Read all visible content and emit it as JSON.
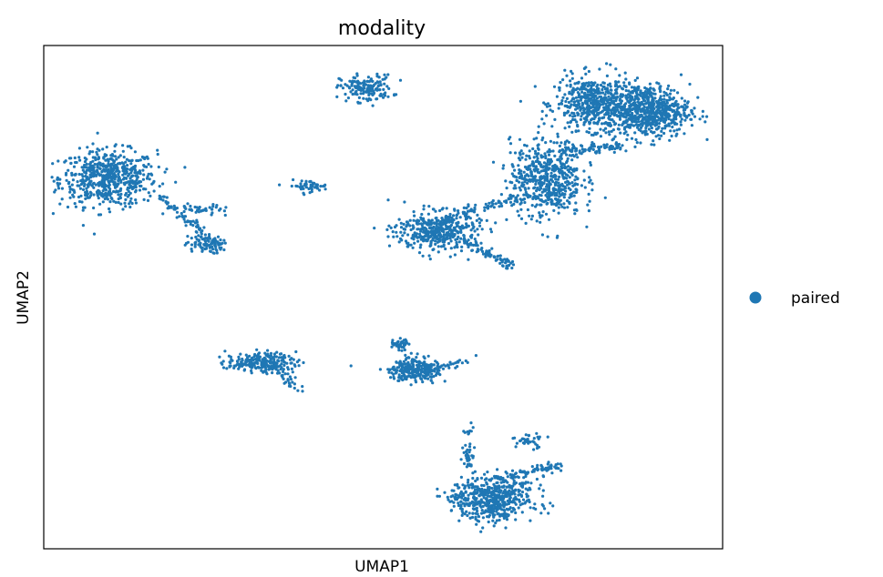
{
  "chart_data": {
    "type": "scatter",
    "title": "modality",
    "xlabel": "UMAP1",
    "ylabel": "UMAP2",
    "xlim": [
      0,
      100
    ],
    "ylim": [
      0,
      100
    ],
    "grid": false,
    "ticks": false,
    "legend": {
      "placement": "right",
      "entries": [
        "paired"
      ]
    },
    "series": [
      {
        "name": "paired",
        "color": "#1f77b4",
        "clusters": [
          {
            "id": "A",
            "center": [
              9.5,
              73.6
            ],
            "spread": [
              6.5,
              5.0
            ],
            "n": 600
          },
          {
            "id": "A-tail",
            "from": [
              17,
              70
            ],
            "to": [
              26,
              60
            ],
            "n": 80
          },
          {
            "id": "A-arm",
            "from": [
              20,
              67.6
            ],
            "to": [
              26.5,
              67.6
            ],
            "n": 40
          },
          {
            "id": "A-blob",
            "center": [
              23.5,
              60.4
            ],
            "spread": [
              2.5,
              1.6
            ],
            "n": 70
          },
          {
            "id": "B",
            "center": [
              47.5,
              91.5
            ],
            "spread": [
              3.5,
              2.4
            ],
            "n": 160
          },
          {
            "id": "C",
            "center": [
              39.0,
              72.1
            ],
            "spread": [
              2.6,
              1.0
            ],
            "n": 50
          },
          {
            "id": "D1",
            "center": [
              81.0,
              88.5
            ],
            "spread": [
              5.2,
              4.8
            ],
            "n": 500
          },
          {
            "id": "D2",
            "center": [
              89.0,
              87.0
            ],
            "spread": [
              5.6,
              4.8
            ],
            "n": 650
          },
          {
            "id": "D3",
            "center": [
              74.0,
              73.5
            ],
            "spread": [
              4.8,
              6.8
            ],
            "n": 550
          },
          {
            "id": "D-link",
            "from": [
              76,
              79
            ],
            "to": [
              85,
              80
            ],
            "n": 90
          },
          {
            "id": "E",
            "center": [
              58.0,
              63.0
            ],
            "spread": [
              5.6,
              3.6
            ],
            "n": 400
          },
          {
            "id": "E-arm",
            "from": [
              58,
              65
            ],
            "to": [
              70,
              70
            ],
            "n": 90
          },
          {
            "id": "E-tail",
            "from": [
              62,
              61
            ],
            "to": [
              69,
              56
            ],
            "n": 70
          },
          {
            "id": "F",
            "center": [
              32.0,
              37.0
            ],
            "spread": [
              4.6,
              1.8
            ],
            "n": 220
          },
          {
            "id": "F-tail",
            "from": [
              35,
              35
            ],
            "to": [
              38,
              31.5
            ],
            "n": 25
          },
          {
            "id": "G",
            "center": [
              54.5,
              35.5
            ],
            "spread": [
              3.5,
              2.0
            ],
            "n": 260
          },
          {
            "id": "G-top",
            "center": [
              52.8,
              40.6
            ],
            "spread": [
              1.3,
              1.1
            ],
            "n": 40
          },
          {
            "id": "G-arm",
            "from": [
              56,
              35.5
            ],
            "to": [
              63,
              37.5
            ],
            "n": 40
          },
          {
            "id": "H",
            "center": [
              66.0,
              10.0
            ],
            "spread": [
              5.5,
              4.0
            ],
            "n": 550
          },
          {
            "id": "H-arm",
            "from": [
              67,
              14
            ],
            "to": [
              76,
              16.5
            ],
            "n": 80
          },
          {
            "id": "H-up",
            "from": [
              62.5,
              16
            ],
            "to": [
              62.5,
              25
            ],
            "n": 40
          },
          {
            "id": "H-dots",
            "center": [
              71.5,
              21.5
            ],
            "spread": [
              2.0,
              1.3
            ],
            "n": 35
          }
        ]
      }
    ]
  }
}
